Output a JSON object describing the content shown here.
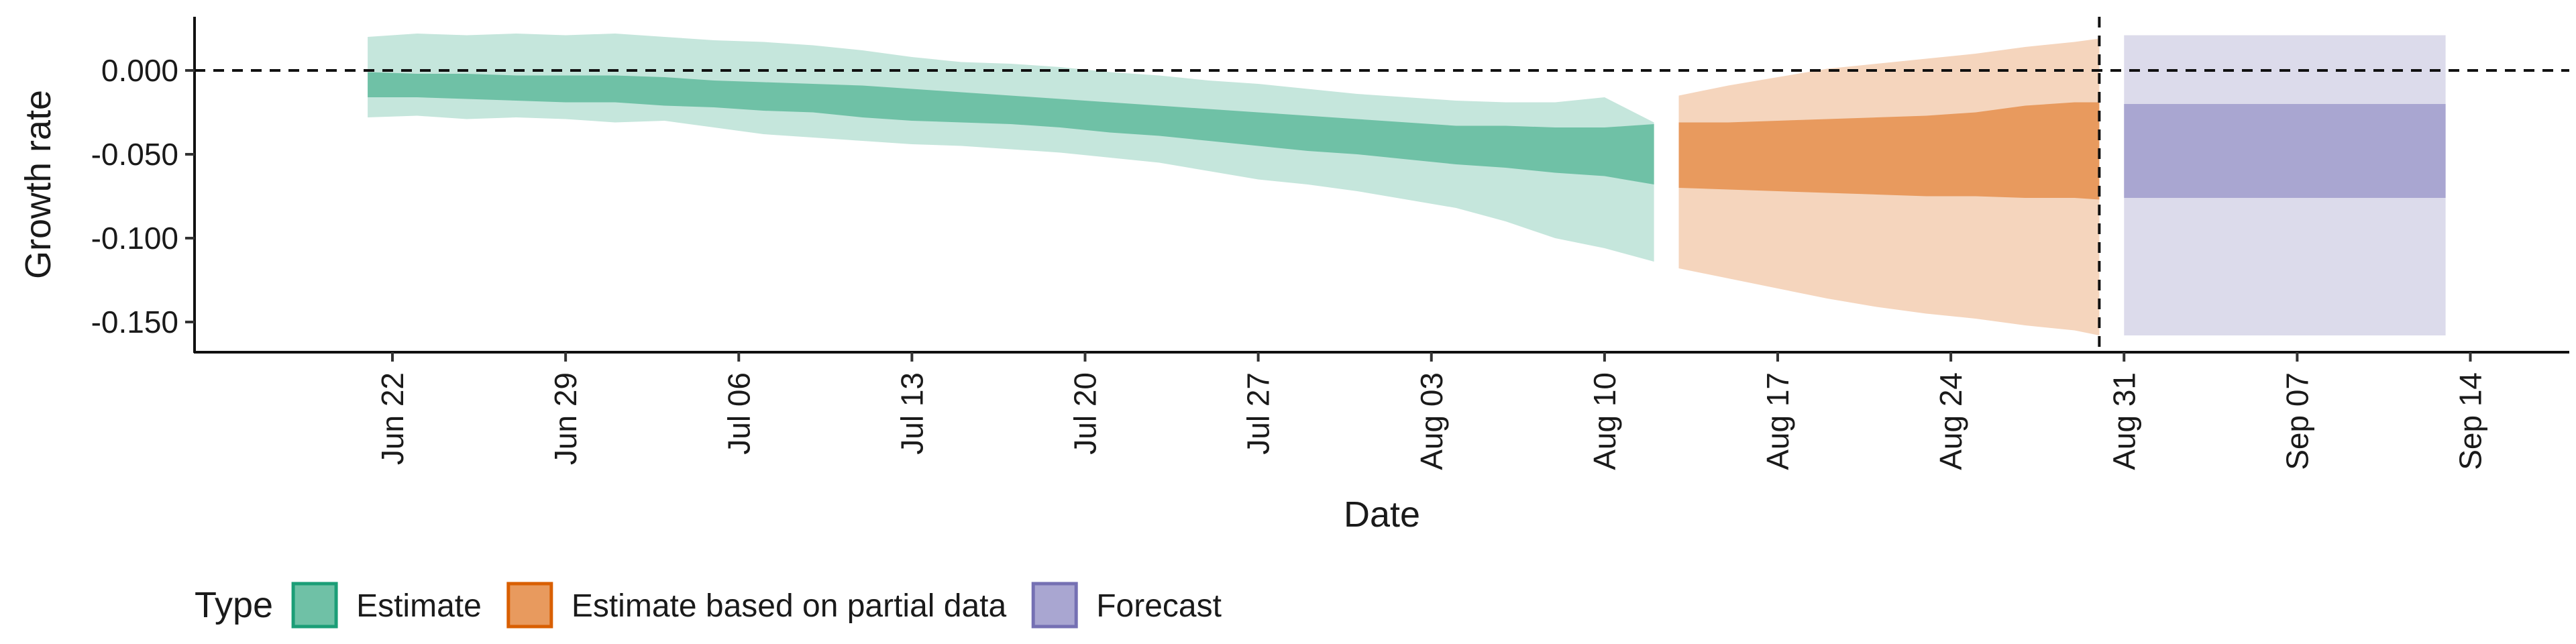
{
  "chart_data": {
    "type": "area",
    "xlabel": "Date",
    "ylabel": "Growth rate",
    "ylim": [
      -0.168,
      0.032
    ],
    "xlim": [
      "2020-06-14",
      "2020-09-18"
    ],
    "y_ticks": [
      {
        "value": 0.0,
        "label": "0.000"
      },
      {
        "value": -0.05,
        "label": "-0.050"
      },
      {
        "value": -0.1,
        "label": "-0.100"
      },
      {
        "value": -0.15,
        "label": "-0.150"
      }
    ],
    "x_ticks": [
      {
        "date": "2020-06-22",
        "label": "Jun 22"
      },
      {
        "date": "2020-06-29",
        "label": "Jun 29"
      },
      {
        "date": "2020-07-06",
        "label": "Jul 06"
      },
      {
        "date": "2020-07-13",
        "label": "Jul 13"
      },
      {
        "date": "2020-07-20",
        "label": "Jul 20"
      },
      {
        "date": "2020-07-27",
        "label": "Jul 27"
      },
      {
        "date": "2020-08-03",
        "label": "Aug 03"
      },
      {
        "date": "2020-08-10",
        "label": "Aug 10"
      },
      {
        "date": "2020-08-17",
        "label": "Aug 17"
      },
      {
        "date": "2020-08-24",
        "label": "Aug 24"
      },
      {
        "date": "2020-08-31",
        "label": "Aug 31"
      },
      {
        "date": "2020-09-07",
        "label": "Sep 07"
      },
      {
        "date": "2020-09-14",
        "label": "Sep 14"
      }
    ],
    "reference_lines": {
      "horizontal_y": 0.0,
      "vertical_date": "2020-08-30",
      "style": "dashed"
    },
    "grid": false,
    "legend": {
      "title": "Type",
      "position": "bottom-left",
      "entries": [
        {
          "label": "Estimate",
          "fill": "#6fc1a6",
          "border": "#1b9e77"
        },
        {
          "label": "Estimate based on partial data",
          "fill": "#e89a5e",
          "border": "#d95f02"
        },
        {
          "label": "Forecast",
          "fill": "#a9a6d1",
          "border": "#7570b3"
        }
      ]
    },
    "series": [
      {
        "name": "Estimate",
        "outer_fill": "#c5e6dc",
        "inner_fill": "#6fc1a6",
        "points": [
          {
            "date": "2020-06-21",
            "outer": [
              -0.028,
              0.02
            ],
            "inner": [
              -0.016,
              -0.001
            ]
          },
          {
            "date": "2020-06-23",
            "outer": [
              -0.027,
              0.022
            ],
            "inner": [
              -0.016,
              -0.002
            ]
          },
          {
            "date": "2020-06-25",
            "outer": [
              -0.029,
              0.021
            ],
            "inner": [
              -0.017,
              -0.002
            ]
          },
          {
            "date": "2020-06-27",
            "outer": [
              -0.028,
              0.022
            ],
            "inner": [
              -0.018,
              -0.003
            ]
          },
          {
            "date": "2020-06-29",
            "outer": [
              -0.029,
              0.021
            ],
            "inner": [
              -0.019,
              -0.003
            ]
          },
          {
            "date": "2020-07-01",
            "outer": [
              -0.031,
              0.022
            ],
            "inner": [
              -0.019,
              -0.003
            ]
          },
          {
            "date": "2020-07-03",
            "outer": [
              -0.03,
              0.02
            ],
            "inner": [
              -0.021,
              -0.004
            ]
          },
          {
            "date": "2020-07-05",
            "outer": [
              -0.034,
              0.018
            ],
            "inner": [
              -0.022,
              -0.006
            ]
          },
          {
            "date": "2020-07-07",
            "outer": [
              -0.038,
              0.017
            ],
            "inner": [
              -0.024,
              -0.007
            ]
          },
          {
            "date": "2020-07-09",
            "outer": [
              -0.04,
              0.015
            ],
            "inner": [
              -0.025,
              -0.008
            ]
          },
          {
            "date": "2020-07-11",
            "outer": [
              -0.042,
              0.012
            ],
            "inner": [
              -0.028,
              -0.009
            ]
          },
          {
            "date": "2020-07-13",
            "outer": [
              -0.044,
              0.008
            ],
            "inner": [
              -0.03,
              -0.011
            ]
          },
          {
            "date": "2020-07-15",
            "outer": [
              -0.045,
              0.005
            ],
            "inner": [
              -0.031,
              -0.013
            ]
          },
          {
            "date": "2020-07-17",
            "outer": [
              -0.047,
              0.004
            ],
            "inner": [
              -0.032,
              -0.015
            ]
          },
          {
            "date": "2020-07-19",
            "outer": [
              -0.049,
              0.002
            ],
            "inner": [
              -0.034,
              -0.017
            ]
          },
          {
            "date": "2020-07-21",
            "outer": [
              -0.052,
              -0.001
            ],
            "inner": [
              -0.037,
              -0.019
            ]
          },
          {
            "date": "2020-07-23",
            "outer": [
              -0.055,
              -0.003
            ],
            "inner": [
              -0.039,
              -0.021
            ]
          },
          {
            "date": "2020-07-25",
            "outer": [
              -0.06,
              -0.006
            ],
            "inner": [
              -0.042,
              -0.023
            ]
          },
          {
            "date": "2020-07-27",
            "outer": [
              -0.065,
              -0.008
            ],
            "inner": [
              -0.045,
              -0.025
            ]
          },
          {
            "date": "2020-07-29",
            "outer": [
              -0.068,
              -0.011
            ],
            "inner": [
              -0.048,
              -0.027
            ]
          },
          {
            "date": "2020-07-31",
            "outer": [
              -0.072,
              -0.014
            ],
            "inner": [
              -0.05,
              -0.029
            ]
          },
          {
            "date": "2020-08-02",
            "outer": [
              -0.077,
              -0.016
            ],
            "inner": [
              -0.053,
              -0.031
            ]
          },
          {
            "date": "2020-08-04",
            "outer": [
              -0.082,
              -0.018
            ],
            "inner": [
              -0.056,
              -0.033
            ]
          },
          {
            "date": "2020-08-06",
            "outer": [
              -0.09,
              -0.019
            ],
            "inner": [
              -0.058,
              -0.033
            ]
          },
          {
            "date": "2020-08-08",
            "outer": [
              -0.1,
              -0.019
            ],
            "inner": [
              -0.061,
              -0.034
            ]
          },
          {
            "date": "2020-08-10",
            "outer": [
              -0.106,
              -0.016
            ],
            "inner": [
              -0.063,
              -0.034
            ]
          },
          {
            "date": "2020-08-12",
            "outer": [
              -0.114,
              -0.031
            ],
            "inner": [
              -0.068,
              -0.032
            ]
          }
        ]
      },
      {
        "name": "Estimate based on partial data",
        "outer_fill": "#f5d5bd",
        "inner_fill": "#e89a5e",
        "points": [
          {
            "date": "2020-08-13",
            "outer": [
              -0.118,
              -0.015
            ],
            "inner": [
              -0.07,
              -0.031
            ]
          },
          {
            "date": "2020-08-15",
            "outer": [
              -0.124,
              -0.009
            ],
            "inner": [
              -0.071,
              -0.031
            ]
          },
          {
            "date": "2020-08-17",
            "outer": [
              -0.13,
              -0.004
            ],
            "inner": [
              -0.072,
              -0.03
            ]
          },
          {
            "date": "2020-08-19",
            "outer": [
              -0.136,
              0.001
            ],
            "inner": [
              -0.073,
              -0.029
            ]
          },
          {
            "date": "2020-08-21",
            "outer": [
              -0.141,
              0.004
            ],
            "inner": [
              -0.074,
              -0.028
            ]
          },
          {
            "date": "2020-08-23",
            "outer": [
              -0.145,
              0.007
            ],
            "inner": [
              -0.075,
              -0.027
            ]
          },
          {
            "date": "2020-08-25",
            "outer": [
              -0.148,
              0.01
            ],
            "inner": [
              -0.075,
              -0.025
            ]
          },
          {
            "date": "2020-08-27",
            "outer": [
              -0.152,
              0.014
            ],
            "inner": [
              -0.076,
              -0.021
            ]
          },
          {
            "date": "2020-08-29",
            "outer": [
              -0.155,
              0.017
            ],
            "inner": [
              -0.076,
              -0.019
            ]
          },
          {
            "date": "2020-08-30",
            "outer": [
              -0.158,
              0.019
            ],
            "inner": [
              -0.077,
              -0.019
            ]
          }
        ]
      },
      {
        "name": "Forecast",
        "outer_fill": "#dcdbeb",
        "inner_fill": "#a9a6d1",
        "points": [
          {
            "date": "2020-08-31",
            "outer": [
              -0.158,
              0.021
            ],
            "inner": [
              -0.076,
              -0.02
            ]
          },
          {
            "date": "2020-09-13",
            "outer": [
              -0.158,
              0.021
            ],
            "inner": [
              -0.076,
              -0.02
            ]
          }
        ]
      }
    ]
  }
}
